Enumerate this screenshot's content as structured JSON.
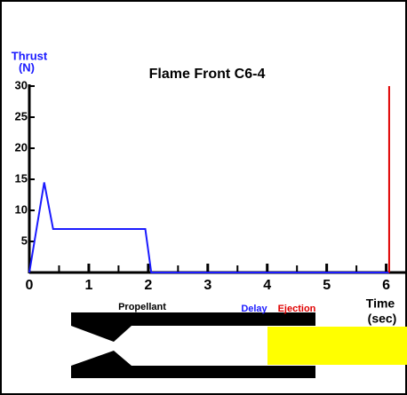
{
  "chart_data": {
    "type": "line",
    "title": "Flame Front  C6-4",
    "y_label": [
      "Thrust",
      "(N)"
    ],
    "x_label": [
      "Time",
      "(sec)"
    ],
    "x": [
      0,
      0.25,
      0.4,
      1.95,
      2.05,
      6.05
    ],
    "series": [
      {
        "name": "Thrust",
        "color": "#1a1aff",
        "values": [
          0,
          14.5,
          7,
          7,
          0,
          0
        ]
      }
    ],
    "ejection_time": 6.05,
    "ejection_color": "#e00000",
    "xlim": [
      0,
      6.35
    ],
    "ylim": [
      0,
      30
    ],
    "xticks": [
      0,
      1,
      2,
      3,
      4,
      5,
      6
    ],
    "xminorticks": [
      0.5,
      1.5,
      2.5,
      3.5,
      4.5,
      5.5
    ],
    "yticks": [
      5,
      10,
      15,
      20,
      25,
      30
    ],
    "diagram_labels": {
      "propellant": "Propellant",
      "delay": "Delay",
      "ejection": "Ejection"
    }
  }
}
